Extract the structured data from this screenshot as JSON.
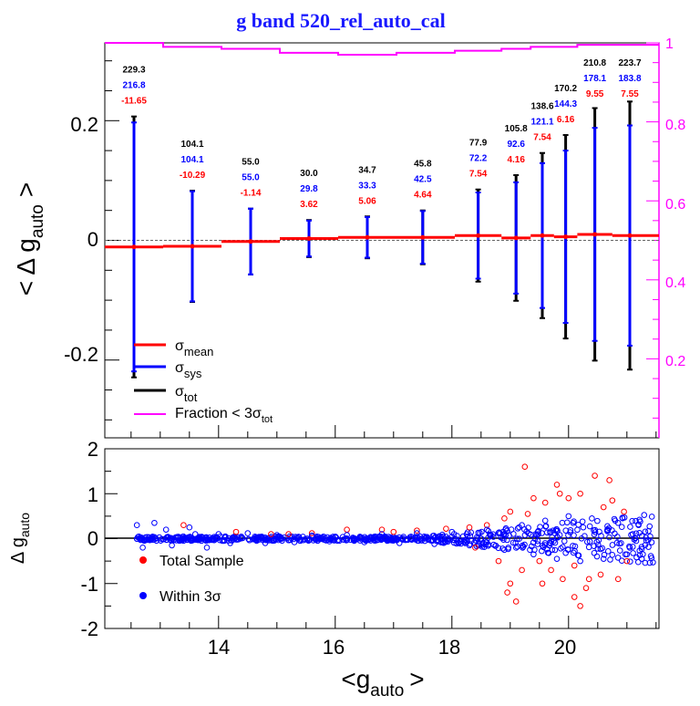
{
  "title": "g band 520_rel_auto_cal",
  "x_axis": {
    "label_main": "<g",
    "label_sub": "auto",
    "label_close": ">",
    "ticks": [
      "14",
      "16",
      "18",
      "20"
    ]
  },
  "top_panel": {
    "y_axis": {
      "label_main": "< Δ g",
      "label_sub": "auto",
      "label_close": ">",
      "ticks": [
        "0.2",
        "0",
        "-0.2"
      ]
    },
    "right_axis": {
      "ticks": [
        "1",
        "0.8",
        "0.6",
        "0.4",
        "0.2"
      ],
      "color": "#ff00ff"
    },
    "legend": {
      "mean": {
        "symbol": "σ",
        "sub": "mean",
        "color": "#ff0000"
      },
      "sys": {
        "symbol": "σ",
        "sub": "sys",
        "color": "#0000ff"
      },
      "tot": {
        "symbol": "σ",
        "sub": "tot",
        "color": "#000000"
      },
      "fraction": {
        "text": "Fraction < 3σ",
        "sub": "tot",
        "color": "#ff00ff"
      }
    }
  },
  "bottom_panel": {
    "y_axis": {
      "label_main": "Δ g",
      "label_sub": "auto",
      "ticks": [
        "2",
        "1",
        "0",
        "-1",
        "-2"
      ]
    },
    "legend": {
      "total": {
        "text": "Total Sample",
        "color": "#ff0000"
      },
      "within": {
        "text": "Within 3σ",
        "color": "#0000ff"
      }
    }
  },
  "chart_data": [
    {
      "type": "scatter",
      "panel": "top",
      "xlim": [
        12.05,
        21.55
      ],
      "ylim": [
        -0.33,
        0.33
      ],
      "right_ylim": [
        0.0,
        1.0
      ],
      "bins": [
        {
          "x": 12.55,
          "mean": -0.011,
          "sys": 0.208,
          "tot": 0.218,
          "n_tot": "229.3",
          "n_sys": "216.8",
          "n_mean": "-11.65"
        },
        {
          "x": 13.55,
          "mean": -0.01,
          "sys": 0.092,
          "tot": 0.093,
          "n_tot": "104.1",
          "n_sys": "104.1",
          "n_mean": "-10.29"
        },
        {
          "x": 14.55,
          "mean": -0.002,
          "sys": 0.055,
          "tot": 0.055,
          "n_tot": "55.0",
          "n_sys": "55.0",
          "n_mean": "-1.14"
        },
        {
          "x": 15.55,
          "mean": 0.003,
          "sys": 0.03,
          "tot": 0.031,
          "n_tot": "30.0",
          "n_sys": "29.8",
          "n_mean": "3.62"
        },
        {
          "x": 16.55,
          "mean": 0.005,
          "sys": 0.034,
          "tot": 0.035,
          "n_tot": "34.7",
          "n_sys": "33.3",
          "n_mean": "5.06"
        },
        {
          "x": 17.5,
          "mean": 0.005,
          "sys": 0.044,
          "tot": 0.045,
          "n_tot": "45.8",
          "n_sys": "42.5",
          "n_mean": "4.64"
        },
        {
          "x": 18.45,
          "mean": 0.008,
          "sys": 0.072,
          "tot": 0.077,
          "n_tot": "77.9",
          "n_sys": "72.2",
          "n_mean": "7.54"
        },
        {
          "x": 19.1,
          "mean": 0.004,
          "sys": 0.093,
          "tot": 0.105,
          "n_tot": "105.8",
          "n_sys": "92.6",
          "n_mean": "4.16"
        },
        {
          "x": 19.55,
          "mean": 0.008,
          "sys": 0.121,
          "tot": 0.138,
          "n_tot": "138.6",
          "n_sys": "121.1",
          "n_mean": "7.54"
        },
        {
          "x": 19.95,
          "mean": 0.006,
          "sys": 0.144,
          "tot": 0.17,
          "n_tot": "170.2",
          "n_sys": "144.3",
          "n_mean": "6.16"
        },
        {
          "x": 20.45,
          "mean": 0.01,
          "sys": 0.178,
          "tot": 0.211,
          "n_tot": "210.8",
          "n_sys": "178.1",
          "n_mean": "9.55"
        },
        {
          "x": 21.05,
          "mean": 0.008,
          "sys": 0.184,
          "tot": 0.224,
          "n_tot": "223.7",
          "n_sys": "183.8",
          "n_mean": "7.55"
        }
      ],
      "mean_steps": [
        {
          "x0": 12.05,
          "x1": 13.05,
          "y": -0.011
        },
        {
          "x0": 13.05,
          "x1": 14.05,
          "y": -0.01
        },
        {
          "x0": 14.05,
          "x1": 15.05,
          "y": -0.002
        },
        {
          "x0": 15.05,
          "x1": 16.05,
          "y": 0.003
        },
        {
          "x0": 16.05,
          "x1": 17.05,
          "y": 0.005
        },
        {
          "x0": 17.05,
          "x1": 18.05,
          "y": 0.005
        },
        {
          "x0": 18.05,
          "x1": 18.85,
          "y": 0.008
        },
        {
          "x0": 18.85,
          "x1": 19.35,
          "y": 0.004
        },
        {
          "x0": 19.35,
          "x1": 19.75,
          "y": 0.008
        },
        {
          "x0": 19.75,
          "x1": 20.15,
          "y": 0.006
        },
        {
          "x0": 20.15,
          "x1": 20.75,
          "y": 0.01
        },
        {
          "x0": 20.75,
          "x1": 21.55,
          "y": 0.008
        }
      ],
      "fraction_steps": [
        {
          "x0": 12.05,
          "x1": 13.05,
          "y": 1.0
        },
        {
          "x0": 13.05,
          "x1": 14.05,
          "y": 0.99
        },
        {
          "x0": 14.05,
          "x1": 15.05,
          "y": 0.985
        },
        {
          "x0": 15.05,
          "x1": 16.05,
          "y": 0.975
        },
        {
          "x0": 16.05,
          "x1": 17.05,
          "y": 0.97
        },
        {
          "x0": 17.05,
          "x1": 18.05,
          "y": 0.975
        },
        {
          "x0": 18.05,
          "x1": 18.85,
          "y": 0.98
        },
        {
          "x0": 18.85,
          "x1": 19.35,
          "y": 0.985
        },
        {
          "x0": 19.35,
          "x1": 19.75,
          "y": 0.99
        },
        {
          "x0": 19.75,
          "x1": 20.15,
          "y": 0.99
        },
        {
          "x0": 20.15,
          "x1": 20.75,
          "y": 0.995
        },
        {
          "x0": 20.75,
          "x1": 21.55,
          "y": 0.995
        }
      ]
    },
    {
      "type": "scatter",
      "panel": "bottom",
      "xlim": [
        12.05,
        21.55
      ],
      "ylim": [
        -2.0,
        2.0
      ],
      "series": [
        {
          "name": "Total Sample",
          "color": "#ff0000",
          "points": [
            [
              14.3,
              0.15
            ],
            [
              15.2,
              0.1
            ],
            [
              16.8,
              0.2
            ],
            [
              17.4,
              0.18
            ],
            [
              17.9,
              0.22
            ],
            [
              18.4,
              -0.2
            ],
            [
              18.6,
              0.3
            ],
            [
              18.9,
              0.45
            ],
            [
              19.0,
              0.6
            ],
            [
              19.3,
              0.55
            ],
            [
              19.5,
              -0.5
            ],
            [
              19.6,
              0.8
            ],
            [
              19.7,
              -0.7
            ],
            [
              19.8,
              1.2
            ],
            [
              19.9,
              -0.9
            ],
            [
              20.0,
              0.9
            ],
            [
              20.1,
              -1.3
            ],
            [
              20.2,
              1.0
            ],
            [
              20.3,
              -1.1
            ],
            [
              20.45,
              1.4
            ],
            [
              20.55,
              -0.8
            ],
            [
              20.7,
              1.3
            ],
            [
              20.85,
              -0.9
            ],
            [
              19.25,
              1.6
            ],
            [
              19.0,
              -1.0
            ],
            [
              18.95,
              -1.2
            ],
            [
              19.1,
              -1.4
            ],
            [
              20.2,
              -1.5
            ],
            [
              20.1,
              -0.6
            ],
            [
              19.4,
              0.9
            ],
            [
              20.6,
              0.7
            ],
            [
              21.0,
              -0.5
            ],
            [
              20.95,
              0.6
            ],
            [
              19.85,
              1.0
            ],
            [
              19.55,
              -1.0
            ],
            [
              20.35,
              -0.9
            ],
            [
              20.75,
              0.85
            ],
            [
              18.8,
              -0.5
            ],
            [
              19.2,
              -0.7
            ],
            [
              18.3,
              0.25
            ],
            [
              17.0,
              0.15
            ],
            [
              16.2,
              0.2
            ],
            [
              15.6,
              0.12
            ],
            [
              13.4,
              0.3
            ],
            [
              14.9,
              0.1
            ]
          ]
        },
        {
          "name": "Within 3σ",
          "color": "#0000ff",
          "points": [
            [
              12.6,
              0.3
            ],
            [
              12.7,
              -0.2
            ],
            [
              12.9,
              0.35
            ],
            [
              13.1,
              0.2
            ],
            [
              13.2,
              -0.15
            ],
            [
              13.5,
              0.25
            ],
            [
              13.6,
              0.1
            ],
            [
              13.8,
              -0.2
            ],
            [
              14.0,
              0.1
            ],
            [
              14.2,
              -0.1
            ],
            [
              14.5,
              0.12
            ],
            [
              14.8,
              -0.1
            ],
            [
              15.0,
              0.08
            ],
            [
              15.3,
              -0.08
            ],
            [
              15.6,
              0.07
            ],
            [
              15.9,
              -0.06
            ],
            [
              16.2,
              0.08
            ],
            [
              16.5,
              -0.08
            ],
            [
              16.8,
              0.1
            ],
            [
              17.1,
              -0.1
            ],
            [
              17.4,
              0.12
            ],
            [
              17.7,
              -0.12
            ],
            [
              18.0,
              0.15
            ],
            [
              18.3,
              -0.15
            ],
            [
              18.6,
              0.2
            ],
            [
              18.9,
              -0.25
            ],
            [
              19.2,
              0.3
            ],
            [
              19.4,
              -0.35
            ],
            [
              19.6,
              0.4
            ],
            [
              19.8,
              -0.45
            ],
            [
              20.0,
              0.5
            ],
            [
              20.2,
              -0.5
            ],
            [
              20.4,
              0.45
            ],
            [
              20.6,
              -0.45
            ],
            [
              20.8,
              0.4
            ],
            [
              21.0,
              -0.35
            ],
            [
              21.2,
              0.3
            ],
            [
              21.4,
              0.05
            ],
            [
              21.1,
              0.1
            ],
            [
              20.9,
              -0.1
            ]
          ]
        }
      ]
    }
  ]
}
